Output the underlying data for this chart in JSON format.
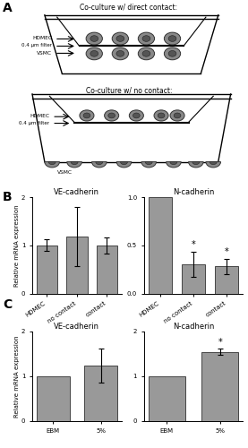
{
  "panel_A_title1": "Co-culture w/ direct contact:",
  "panel_A_title2": "Co-culture w/ no contact:",
  "panel_B_VE_title": "VE-cadherin",
  "panel_B_N_title": "N-cadherin",
  "panel_B_VE_values": [
    1.0,
    1.18,
    1.0
  ],
  "panel_B_VE_errors": [
    0.12,
    0.62,
    0.17
  ],
  "panel_B_N_values": [
    1.0,
    0.3,
    0.28
  ],
  "panel_B_N_errors": [
    0.0,
    0.13,
    0.08
  ],
  "panel_B_xlabels": [
    "HDMEC",
    "no contact",
    "contact"
  ],
  "panel_B_VE_ylim": [
    0,
    2
  ],
  "panel_B_N_ylim": [
    0.0,
    1.0
  ],
  "panel_B_VE_yticks": [
    0,
    1,
    2
  ],
  "panel_B_N_yticks": [
    0.0,
    0.5,
    1.0
  ],
  "panel_B_ylabel": "Relative mRNA expression",
  "panel_C_VE_title": "VE-cadherin",
  "panel_C_N_title": "N-cadherin",
  "panel_C_VE_values": [
    1.0,
    1.25
  ],
  "panel_C_VE_errors": [
    0.0,
    0.38
  ],
  "panel_C_N_values": [
    1.0,
    1.55
  ],
  "panel_C_N_errors": [
    0.0,
    0.07
  ],
  "panel_C_xlabels": [
    "EBM",
    "5%"
  ],
  "panel_C_ylim": [
    0,
    2
  ],
  "panel_C_yticks": [
    0,
    1,
    2
  ],
  "panel_C_ylabel": "Relative mRNA expression",
  "bar_color": "#999999",
  "bar_edgecolor": "#444444",
  "label_A": "A",
  "label_B": "B",
  "label_C": "C"
}
